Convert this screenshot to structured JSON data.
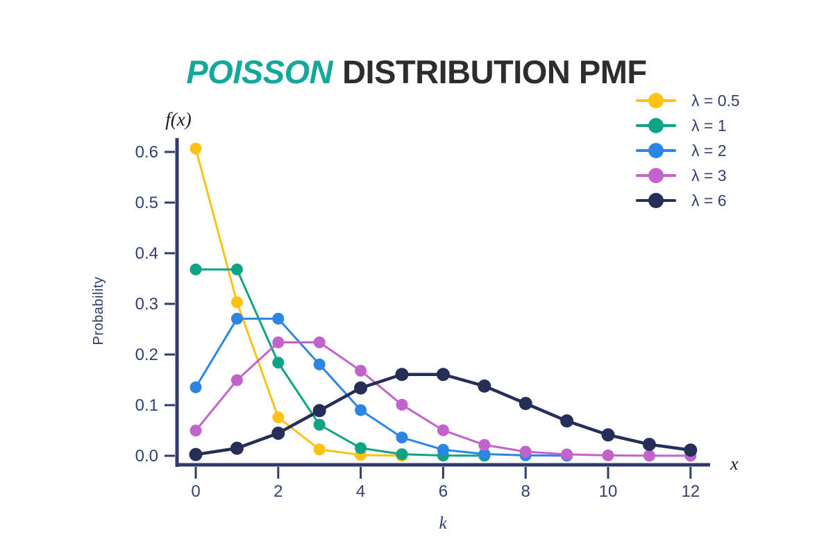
{
  "title": {
    "accent": "POISSON",
    "rest": "DISTRIBUTION PMF",
    "accent_color": "#14A79B",
    "rest_color": "#2D2D2D"
  },
  "chart_data": {
    "type": "line",
    "title": "Poisson Distribution PMF",
    "xlabel": "k",
    "ylabel": "Probability",
    "y_axis_top_label": "f(x)",
    "x_axis_end_label": "x",
    "x": [
      0,
      1,
      2,
      3,
      4,
      5,
      6,
      7,
      8,
      9,
      10,
      11,
      12
    ],
    "xticks": [
      0,
      2,
      4,
      6,
      8,
      10,
      12
    ],
    "yticks": [
      0.0,
      0.1,
      0.2,
      0.3,
      0.4,
      0.5,
      0.6
    ],
    "xlim": [
      0,
      12
    ],
    "ylim": [
      0,
      0.63
    ],
    "grid": false,
    "legend_position": "top-right",
    "axis_color": "#2F3B6B",
    "tick_label_color": "#33406E",
    "math_label_color": "#1A1A1A",
    "series": [
      {
        "label": "λ = 0.5",
        "color": "#FCC211",
        "line_width": 3,
        "values": [
          0.6065,
          0.3033,
          0.0758,
          0.0126,
          0.0016,
          0.0002
        ]
      },
      {
        "label": "λ = 1",
        "color": "#0CA483",
        "line_width": 3,
        "values": [
          0.3679,
          0.3679,
          0.1839,
          0.0613,
          0.0153,
          0.0031,
          0.0005,
          0.0001
        ]
      },
      {
        "label": "λ = 2",
        "color": "#2B85E4",
        "line_width": 3,
        "values": [
          0.1353,
          0.2707,
          0.2707,
          0.1804,
          0.0902,
          0.0361,
          0.012,
          0.0034,
          0.0009,
          0.0002
        ]
      },
      {
        "label": "λ = 3",
        "color": "#C263CB",
        "line_width": 3,
        "values": [
          0.0498,
          0.1494,
          0.224,
          0.224,
          0.168,
          0.1008,
          0.0504,
          0.0216,
          0.0081,
          0.0027,
          0.0008,
          0.0002,
          0.0001
        ]
      },
      {
        "label": "λ = 6",
        "color": "#252E57",
        "line_width": 4.5,
        "values": [
          0.0025,
          0.0149,
          0.0446,
          0.0892,
          0.1339,
          0.1606,
          0.1606,
          0.1377,
          0.1033,
          0.0688,
          0.0413,
          0.0225,
          0.0113
        ]
      }
    ]
  }
}
